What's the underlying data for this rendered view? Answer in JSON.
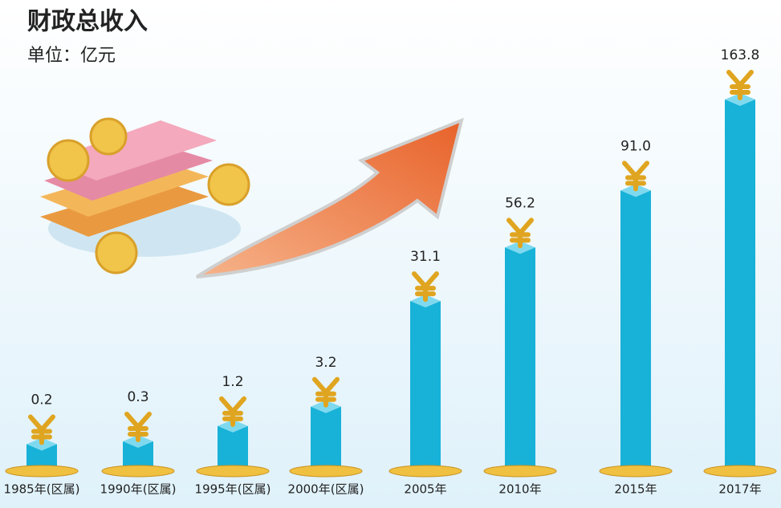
{
  "chart_data": {
    "type": "bar",
    "title": "财政总收入",
    "subtitle": "单位：亿元",
    "categories": [
      "1985年(区属)",
      "1990年(区属)",
      "1995年(区属)",
      "2000年(区属)",
      "2005年",
      "2010年",
      "2015年",
      "2017年"
    ],
    "values": [
      0.2,
      0.3,
      1.2,
      3.2,
      31.1,
      56.2,
      91.0,
      163.8
    ],
    "value_labels": [
      "0.2",
      "0.3",
      "1.2",
      "3.2",
      "31.1",
      "56.2",
      "91.0",
      "163.8"
    ],
    "color": "#18b2d8"
  }
}
